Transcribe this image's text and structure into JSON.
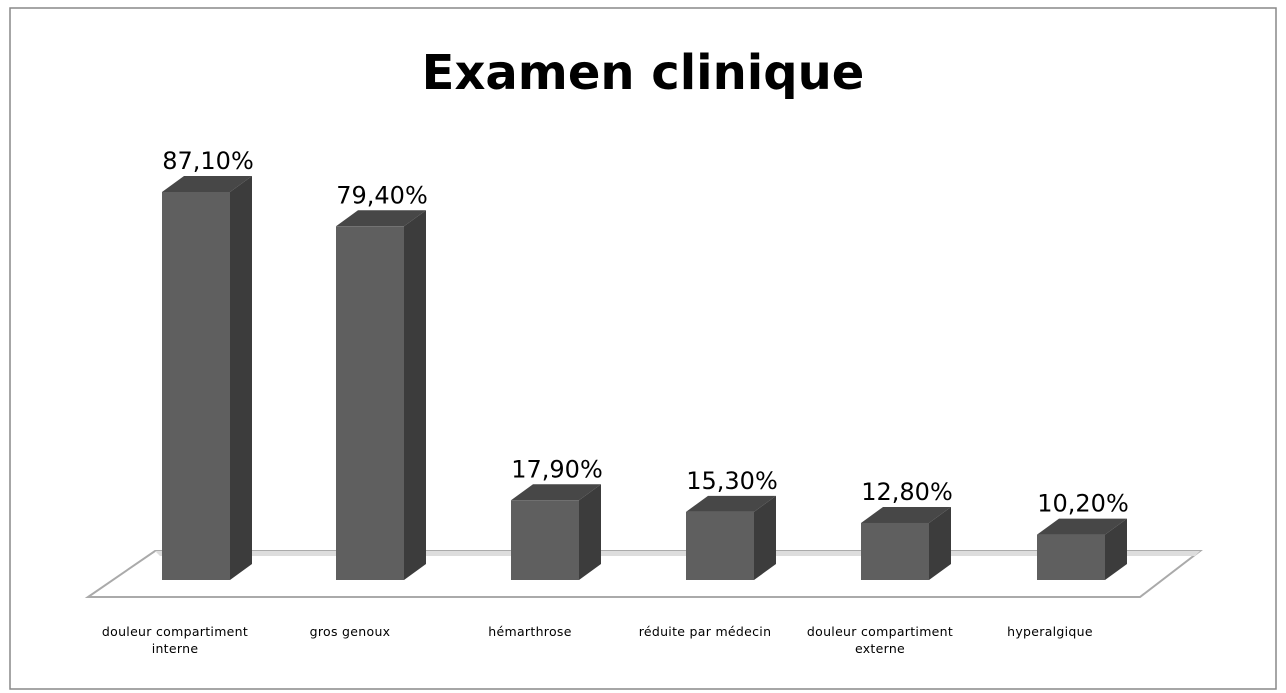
{
  "chart_data": {
    "type": "bar3d",
    "title": "Examen clinique",
    "categories": [
      "douleur compartiment interne",
      "gros genoux",
      "hémarthrose",
      "réduite par médecin",
      "douleur compartiment externe",
      "hyperalgique"
    ],
    "values": [
      87.1,
      79.4,
      17.9,
      15.3,
      12.8,
      10.2
    ],
    "value_labels": [
      "87,10%",
      "79,40%",
      "17,90%",
      "15,30%",
      "12,80%",
      "10,20%"
    ],
    "color": "#5f5f5f"
  }
}
